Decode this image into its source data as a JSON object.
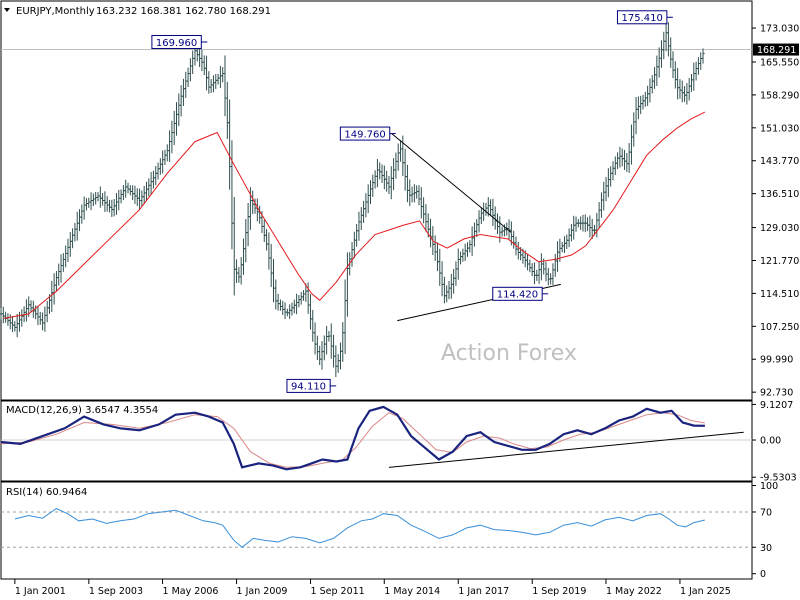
{
  "header": {
    "symbol": "EURJPY,Monthly",
    "ohlc": "163.232 168.381 162.780 168.291"
  },
  "watermark": "Action Forex",
  "colors": {
    "bars": "#2f4f4f",
    "ma": "#e41a1c",
    "macd": "#1a237e",
    "signal": "#d98888",
    "rsi": "#3a8fd8",
    "trend": "#000000",
    "label_border": "#000080",
    "price_label_bg": "#000000",
    "grid_level": "#bfbfbf"
  },
  "chart_data": [
    {
      "type": "ohlc",
      "title": "",
      "ylim": [
        91.0,
        179.0
      ],
      "ytick_labels": [
        "173.030",
        "165.550",
        "158.290",
        "151.030",
        "143.770",
        "136.510",
        "129.030",
        "121.770",
        "114.510",
        "107.250",
        "99.990",
        "92.730"
      ],
      "ytick_values": [
        173.03,
        165.55,
        158.29,
        151.03,
        143.77,
        136.51,
        129.03,
        121.77,
        114.51,
        107.25,
        99.99,
        92.73
      ],
      "current_price_label": "168.291",
      "current_price": 168.291,
      "x_tick_labels": [
        "1 Jan 2001",
        "1 Sep 2003",
        "1 May 2006",
        "1 Jan 2009",
        "1 Sep 2011",
        "1 May 2014",
        "1 Jan 2017",
        "1 Sep 2019",
        "1 May 2022",
        "1 Jan 2025"
      ],
      "x_tick_years": [
        2001.0,
        2003.67,
        2006.33,
        2009.0,
        2011.67,
        2014.33,
        2017.0,
        2019.67,
        2022.33,
        2025.0
      ],
      "x_range": [
        2000.5,
        2027.6
      ],
      "close_path": [
        [
          2000.5,
          110
        ],
        [
          2001.0,
          107
        ],
        [
          2001.5,
          112
        ],
        [
          2002.0,
          108
        ],
        [
          2002.5,
          118
        ],
        [
          2003.0,
          126
        ],
        [
          2003.5,
          134
        ],
        [
          2004.0,
          136
        ],
        [
          2004.5,
          133
        ],
        [
          2005.0,
          138
        ],
        [
          2005.5,
          135
        ],
        [
          2006.0,
          140
        ],
        [
          2006.5,
          146
        ],
        [
          2007.0,
          158
        ],
        [
          2007.5,
          168
        ],
        [
          2007.8,
          165
        ],
        [
          2008.0,
          160
        ],
        [
          2008.5,
          163
        ],
        [
          2008.7,
          150
        ],
        [
          2008.9,
          120
        ],
        [
          2009.1,
          118
        ],
        [
          2009.5,
          135
        ],
        [
          2009.8,
          132
        ],
        [
          2010.1,
          125
        ],
        [
          2010.4,
          113
        ],
        [
          2010.8,
          110
        ],
        [
          2011.1,
          112
        ],
        [
          2011.5,
          115
        ],
        [
          2011.8,
          104
        ],
        [
          2012.0,
          100
        ],
        [
          2012.3,
          106
        ],
        [
          2012.6,
          98
        ],
        [
          2012.8,
          103
        ],
        [
          2013.0,
          120
        ],
        [
          2013.4,
          130
        ],
        [
          2013.8,
          137
        ],
        [
          2014.1,
          142
        ],
        [
          2014.5,
          138
        ],
        [
          2014.9,
          147
        ],
        [
          2015.2,
          136
        ],
        [
          2015.5,
          137
        ],
        [
          2015.8,
          131
        ],
        [
          2016.2,
          123
        ],
        [
          2016.5,
          114
        ],
        [
          2016.8,
          117
        ],
        [
          2017.0,
          122
        ],
        [
          2017.4,
          125
        ],
        [
          2017.8,
          132
        ],
        [
          2018.1,
          134
        ],
        [
          2018.5,
          128
        ],
        [
          2018.8,
          129
        ],
        [
          2019.1,
          124
        ],
        [
          2019.4,
          122
        ],
        [
          2019.8,
          118
        ],
        [
          2020.0,
          121
        ],
        [
          2020.3,
          117
        ],
        [
          2020.6,
          124
        ],
        [
          2020.9,
          126
        ],
        [
          2021.2,
          130
        ],
        [
          2021.6,
          130
        ],
        [
          2021.9,
          128
        ],
        [
          2022.2,
          136
        ],
        [
          2022.5,
          141
        ],
        [
          2022.8,
          145
        ],
        [
          2023.1,
          143
        ],
        [
          2023.4,
          155
        ],
        [
          2023.8,
          158
        ],
        [
          2024.1,
          163
        ],
        [
          2024.5,
          172
        ],
        [
          2024.7,
          165
        ],
        [
          2024.9,
          160
        ],
        [
          2025.2,
          158
        ],
        [
          2025.5,
          163
        ],
        [
          2025.9,
          168.3
        ]
      ],
      "ma_path": [
        [
          2000.6,
          109.0
        ],
        [
          2001.5,
          110.0
        ],
        [
          2002.5,
          115.0
        ],
        [
          2003.5,
          121.0
        ],
        [
          2004.5,
          127.0
        ],
        [
          2005.5,
          133.0
        ],
        [
          2006.5,
          141.0
        ],
        [
          2007.5,
          148.0
        ],
        [
          2008.3,
          150.0
        ],
        [
          2008.9,
          143.0
        ],
        [
          2009.8,
          133.0
        ],
        [
          2010.5,
          126.0
        ],
        [
          2011.2,
          119.0
        ],
        [
          2011.7,
          114.5
        ],
        [
          2012.0,
          113.0
        ],
        [
          2012.6,
          117.0
        ],
        [
          2013.3,
          123.0
        ],
        [
          2014.0,
          127.5
        ],
        [
          2014.5,
          128.5
        ],
        [
          2015.0,
          129.5
        ],
        [
          2015.6,
          130.5
        ],
        [
          2016.1,
          126.0
        ],
        [
          2016.6,
          124.5
        ],
        [
          2017.2,
          126.5
        ],
        [
          2017.8,
          127.5
        ],
        [
          2018.3,
          127.0
        ],
        [
          2018.8,
          126.5
        ],
        [
          2019.3,
          124.0
        ],
        [
          2019.9,
          121.5
        ],
        [
          2020.5,
          122.0
        ],
        [
          2021.1,
          123.0
        ],
        [
          2021.6,
          125.0
        ],
        [
          2022.1,
          129.0
        ],
        [
          2022.6,
          133.0
        ],
        [
          2023.2,
          139.0
        ],
        [
          2023.8,
          145.0
        ],
        [
          2024.4,
          148.5
        ],
        [
          2024.9,
          151.0
        ],
        [
          2025.4,
          153.0
        ],
        [
          2025.9,
          154.5
        ]
      ],
      "trendlines": [
        {
          "from": [
            2014.6,
            149.76
          ],
          "to": [
            2018.9,
            128.0
          ]
        },
        {
          "from": [
            2014.8,
            108.5
          ],
          "to": [
            2020.7,
            116.5
          ]
        }
      ],
      "annotations": [
        {
          "text": "169.960",
          "x": 2007.8,
          "y": 169.96,
          "anchor": "left"
        },
        {
          "text": "149.760",
          "x": 2014.6,
          "y": 149.76,
          "anchor": "left"
        },
        {
          "text": "94.110",
          "x": 2012.45,
          "y": 94.11,
          "anchor": "left"
        },
        {
          "text": "114.420",
          "x": 2020.1,
          "y": 114.42,
          "anchor": "left"
        },
        {
          "text": "175.410",
          "x": 2024.6,
          "y": 175.41,
          "anchor": "left"
        }
      ]
    },
    {
      "type": "line",
      "label": "MACD(12,26,9) 3.6547 4.3554",
      "ylim": [
        -10.5,
        10.0
      ],
      "ytick_labels": [
        "9.1207",
        "0.00",
        "-9.5303"
      ],
      "ytick_values": [
        9.1207,
        0.0,
        -9.5303
      ],
      "series": [
        {
          "key": "macd",
          "points": [
            [
              2000.5,
              -0.5
            ],
            [
              2001.2,
              -1.0
            ],
            [
              2002.0,
              1.0
            ],
            [
              2002.8,
              3.0
            ],
            [
              2003.5,
              6.0
            ],
            [
              2004.2,
              4.0
            ],
            [
              2004.8,
              3.0
            ],
            [
              2005.5,
              2.5
            ],
            [
              2006.2,
              4.0
            ],
            [
              2006.8,
              6.5
            ],
            [
              2007.5,
              7.0
            ],
            [
              2008.0,
              6.0
            ],
            [
              2008.5,
              4.5
            ],
            [
              2008.9,
              -1.0
            ],
            [
              2009.2,
              -7.0
            ],
            [
              2009.8,
              -6.0
            ],
            [
              2010.3,
              -6.5
            ],
            [
              2010.8,
              -7.5
            ],
            [
              2011.3,
              -7.0
            ],
            [
              2011.7,
              -6.0
            ],
            [
              2012.1,
              -5.0
            ],
            [
              2012.6,
              -5.5
            ],
            [
              2013.0,
              -5.0
            ],
            [
              2013.4,
              3.0
            ],
            [
              2013.8,
              7.5
            ],
            [
              2014.3,
              8.5
            ],
            [
              2014.8,
              6.5
            ],
            [
              2015.3,
              1.0
            ],
            [
              2015.8,
              -2.0
            ],
            [
              2016.3,
              -5.0
            ],
            [
              2016.8,
              -3.0
            ],
            [
              2017.3,
              1.0
            ],
            [
              2017.8,
              2.0
            ],
            [
              2018.3,
              -0.5
            ],
            [
              2018.8,
              -1.5
            ],
            [
              2019.3,
              -2.5
            ],
            [
              2019.8,
              -2.5
            ],
            [
              2020.3,
              -1.0
            ],
            [
              2020.8,
              1.5
            ],
            [
              2021.3,
              2.5
            ],
            [
              2021.8,
              1.5
            ],
            [
              2022.3,
              3.0
            ],
            [
              2022.8,
              5.0
            ],
            [
              2023.3,
              6.0
            ],
            [
              2023.8,
              8.0
            ],
            [
              2024.3,
              7.0
            ],
            [
              2024.7,
              7.5
            ],
            [
              2025.1,
              4.5
            ],
            [
              2025.5,
              3.7
            ],
            [
              2025.9,
              3.65
            ]
          ]
        },
        {
          "key": "signal",
          "points": [
            [
              2000.5,
              -1.0
            ],
            [
              2001.5,
              -0.5
            ],
            [
              2002.5,
              1.5
            ],
            [
              2003.5,
              4.5
            ],
            [
              2004.5,
              4.0
            ],
            [
              2005.5,
              3.0
            ],
            [
              2006.5,
              4.5
            ],
            [
              2007.5,
              6.5
            ],
            [
              2008.3,
              6.0
            ],
            [
              2008.9,
              3.0
            ],
            [
              2009.5,
              -3.0
            ],
            [
              2010.2,
              -6.0
            ],
            [
              2010.8,
              -7.0
            ],
            [
              2011.5,
              -6.8
            ],
            [
              2012.2,
              -5.8
            ],
            [
              2012.8,
              -5.2
            ],
            [
              2013.3,
              -2.0
            ],
            [
              2013.9,
              3.5
            ],
            [
              2014.5,
              7.0
            ],
            [
              2015.0,
              5.5
            ],
            [
              2015.6,
              1.5
            ],
            [
              2016.2,
              -2.5
            ],
            [
              2016.8,
              -3.2
            ],
            [
              2017.3,
              -0.5
            ],
            [
              2017.9,
              1.0
            ],
            [
              2018.5,
              0.5
            ],
            [
              2019.0,
              -1.0
            ],
            [
              2019.6,
              -2.2
            ],
            [
              2020.2,
              -1.8
            ],
            [
              2020.8,
              0.0
            ],
            [
              2021.4,
              1.5
            ],
            [
              2022.0,
              2.0
            ],
            [
              2022.6,
              3.5
            ],
            [
              2023.2,
              5.0
            ],
            [
              2023.8,
              6.5
            ],
            [
              2024.4,
              7.0
            ],
            [
              2024.9,
              6.5
            ],
            [
              2025.4,
              5.0
            ],
            [
              2025.9,
              4.36
            ]
          ]
        }
      ],
      "trendline": {
        "from": [
          2014.5,
          -7.0
        ],
        "to": [
          2027.3,
          2.0
        ]
      }
    },
    {
      "type": "line",
      "label": "RSI(14) 60.9464",
      "ylim": [
        -6,
        104
      ],
      "ytick_labels": [
        "100",
        "70",
        "30",
        "0"
      ],
      "ytick_values": [
        100,
        70,
        30,
        0
      ],
      "levels": [
        70,
        30
      ],
      "series": [
        {
          "key": "rsi",
          "points": [
            [
              2001.0,
              62
            ],
            [
              2001.5,
              66
            ],
            [
              2002.0,
              63
            ],
            [
              2002.5,
              74
            ],
            [
              2002.9,
              68
            ],
            [
              2003.3,
              60
            ],
            [
              2003.8,
              62
            ],
            [
              2004.3,
              57
            ],
            [
              2004.8,
              60
            ],
            [
              2005.3,
              62
            ],
            [
              2005.8,
              68
            ],
            [
              2006.3,
              70
            ],
            [
              2006.8,
              72
            ],
            [
              2007.3,
              66
            ],
            [
              2007.8,
              60
            ],
            [
              2008.2,
              58
            ],
            [
              2008.5,
              55
            ],
            [
              2008.9,
              38
            ],
            [
              2009.2,
              30
            ],
            [
              2009.6,
              40
            ],
            [
              2010.0,
              38
            ],
            [
              2010.5,
              36
            ],
            [
              2011.0,
              42
            ],
            [
              2011.5,
              40
            ],
            [
              2012.0,
              35
            ],
            [
              2012.5,
              40
            ],
            [
              2013.0,
              52
            ],
            [
              2013.5,
              60
            ],
            [
              2013.9,
              62
            ],
            [
              2014.3,
              68
            ],
            [
              2014.8,
              66
            ],
            [
              2015.3,
              55
            ],
            [
              2015.8,
              48
            ],
            [
              2016.3,
              40
            ],
            [
              2016.8,
              44
            ],
            [
              2017.3,
              52
            ],
            [
              2017.8,
              55
            ],
            [
              2018.3,
              50
            ],
            [
              2018.8,
              49
            ],
            [
              2019.3,
              47
            ],
            [
              2019.8,
              44
            ],
            [
              2020.3,
              47
            ],
            [
              2020.8,
              55
            ],
            [
              2021.3,
              58
            ],
            [
              2021.8,
              54
            ],
            [
              2022.3,
              61
            ],
            [
              2022.8,
              64
            ],
            [
              2023.3,
              60
            ],
            [
              2023.8,
              66
            ],
            [
              2024.3,
              68
            ],
            [
              2024.6,
              62
            ],
            [
              2024.9,
              55
            ],
            [
              2025.2,
              53
            ],
            [
              2025.5,
              58
            ],
            [
              2025.9,
              60.9
            ]
          ]
        }
      ]
    }
  ]
}
